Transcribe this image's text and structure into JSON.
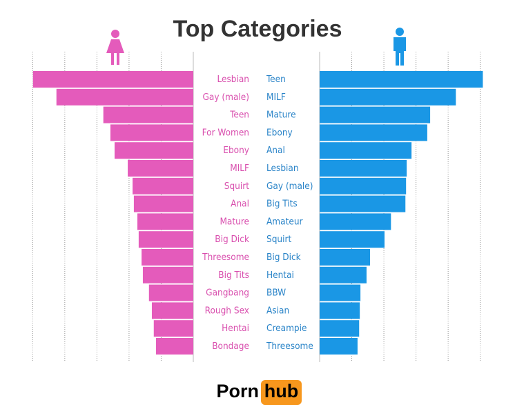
{
  "chart_data": {
    "type": "butterfly",
    "title": "Top Categories",
    "xlim": [
      0,
      5.2
    ],
    "xticks": [
      1,
      2,
      3,
      4,
      5
    ],
    "grid": true,
    "series": [
      {
        "side": "left",
        "color": "#e45bbb",
        "label_color": "#d94fae",
        "categories": [
          "Lesbian",
          "Gay (male)",
          "Teen",
          "For Women",
          "Ebony",
          "MILF",
          "Squirt",
          "Anal",
          "Mature",
          "Big Dick",
          "Threesome",
          "Big Tits",
          "Gangbang",
          "Rough Sex",
          "Hentai",
          "Bondage"
        ],
        "values": [
          4.99,
          4.26,
          2.8,
          2.58,
          2.45,
          2.04,
          1.89,
          1.85,
          1.74,
          1.7,
          1.61,
          1.57,
          1.38,
          1.29,
          1.23,
          1.16
        ]
      },
      {
        "side": "right",
        "color": "#1a97e5",
        "label_color": "#2a84c8",
        "categories": [
          "Teen",
          "MILF",
          "Mature",
          "Ebony",
          "Anal",
          "Lesbian",
          "Gay (male)",
          "Big Tits",
          "Amateur",
          "Squirt",
          "Big Dick",
          "Hentai",
          "BBW",
          "Asian",
          "Creampie",
          "Threesome"
        ],
        "values": [
          5.08,
          4.24,
          3.44,
          3.35,
          2.86,
          2.71,
          2.69,
          2.67,
          2.22,
          2.02,
          1.57,
          1.46,
          1.27,
          1.25,
          1.23,
          1.18
        ]
      }
    ],
    "logo": {
      "first": "Porn",
      "second": "hub"
    }
  }
}
